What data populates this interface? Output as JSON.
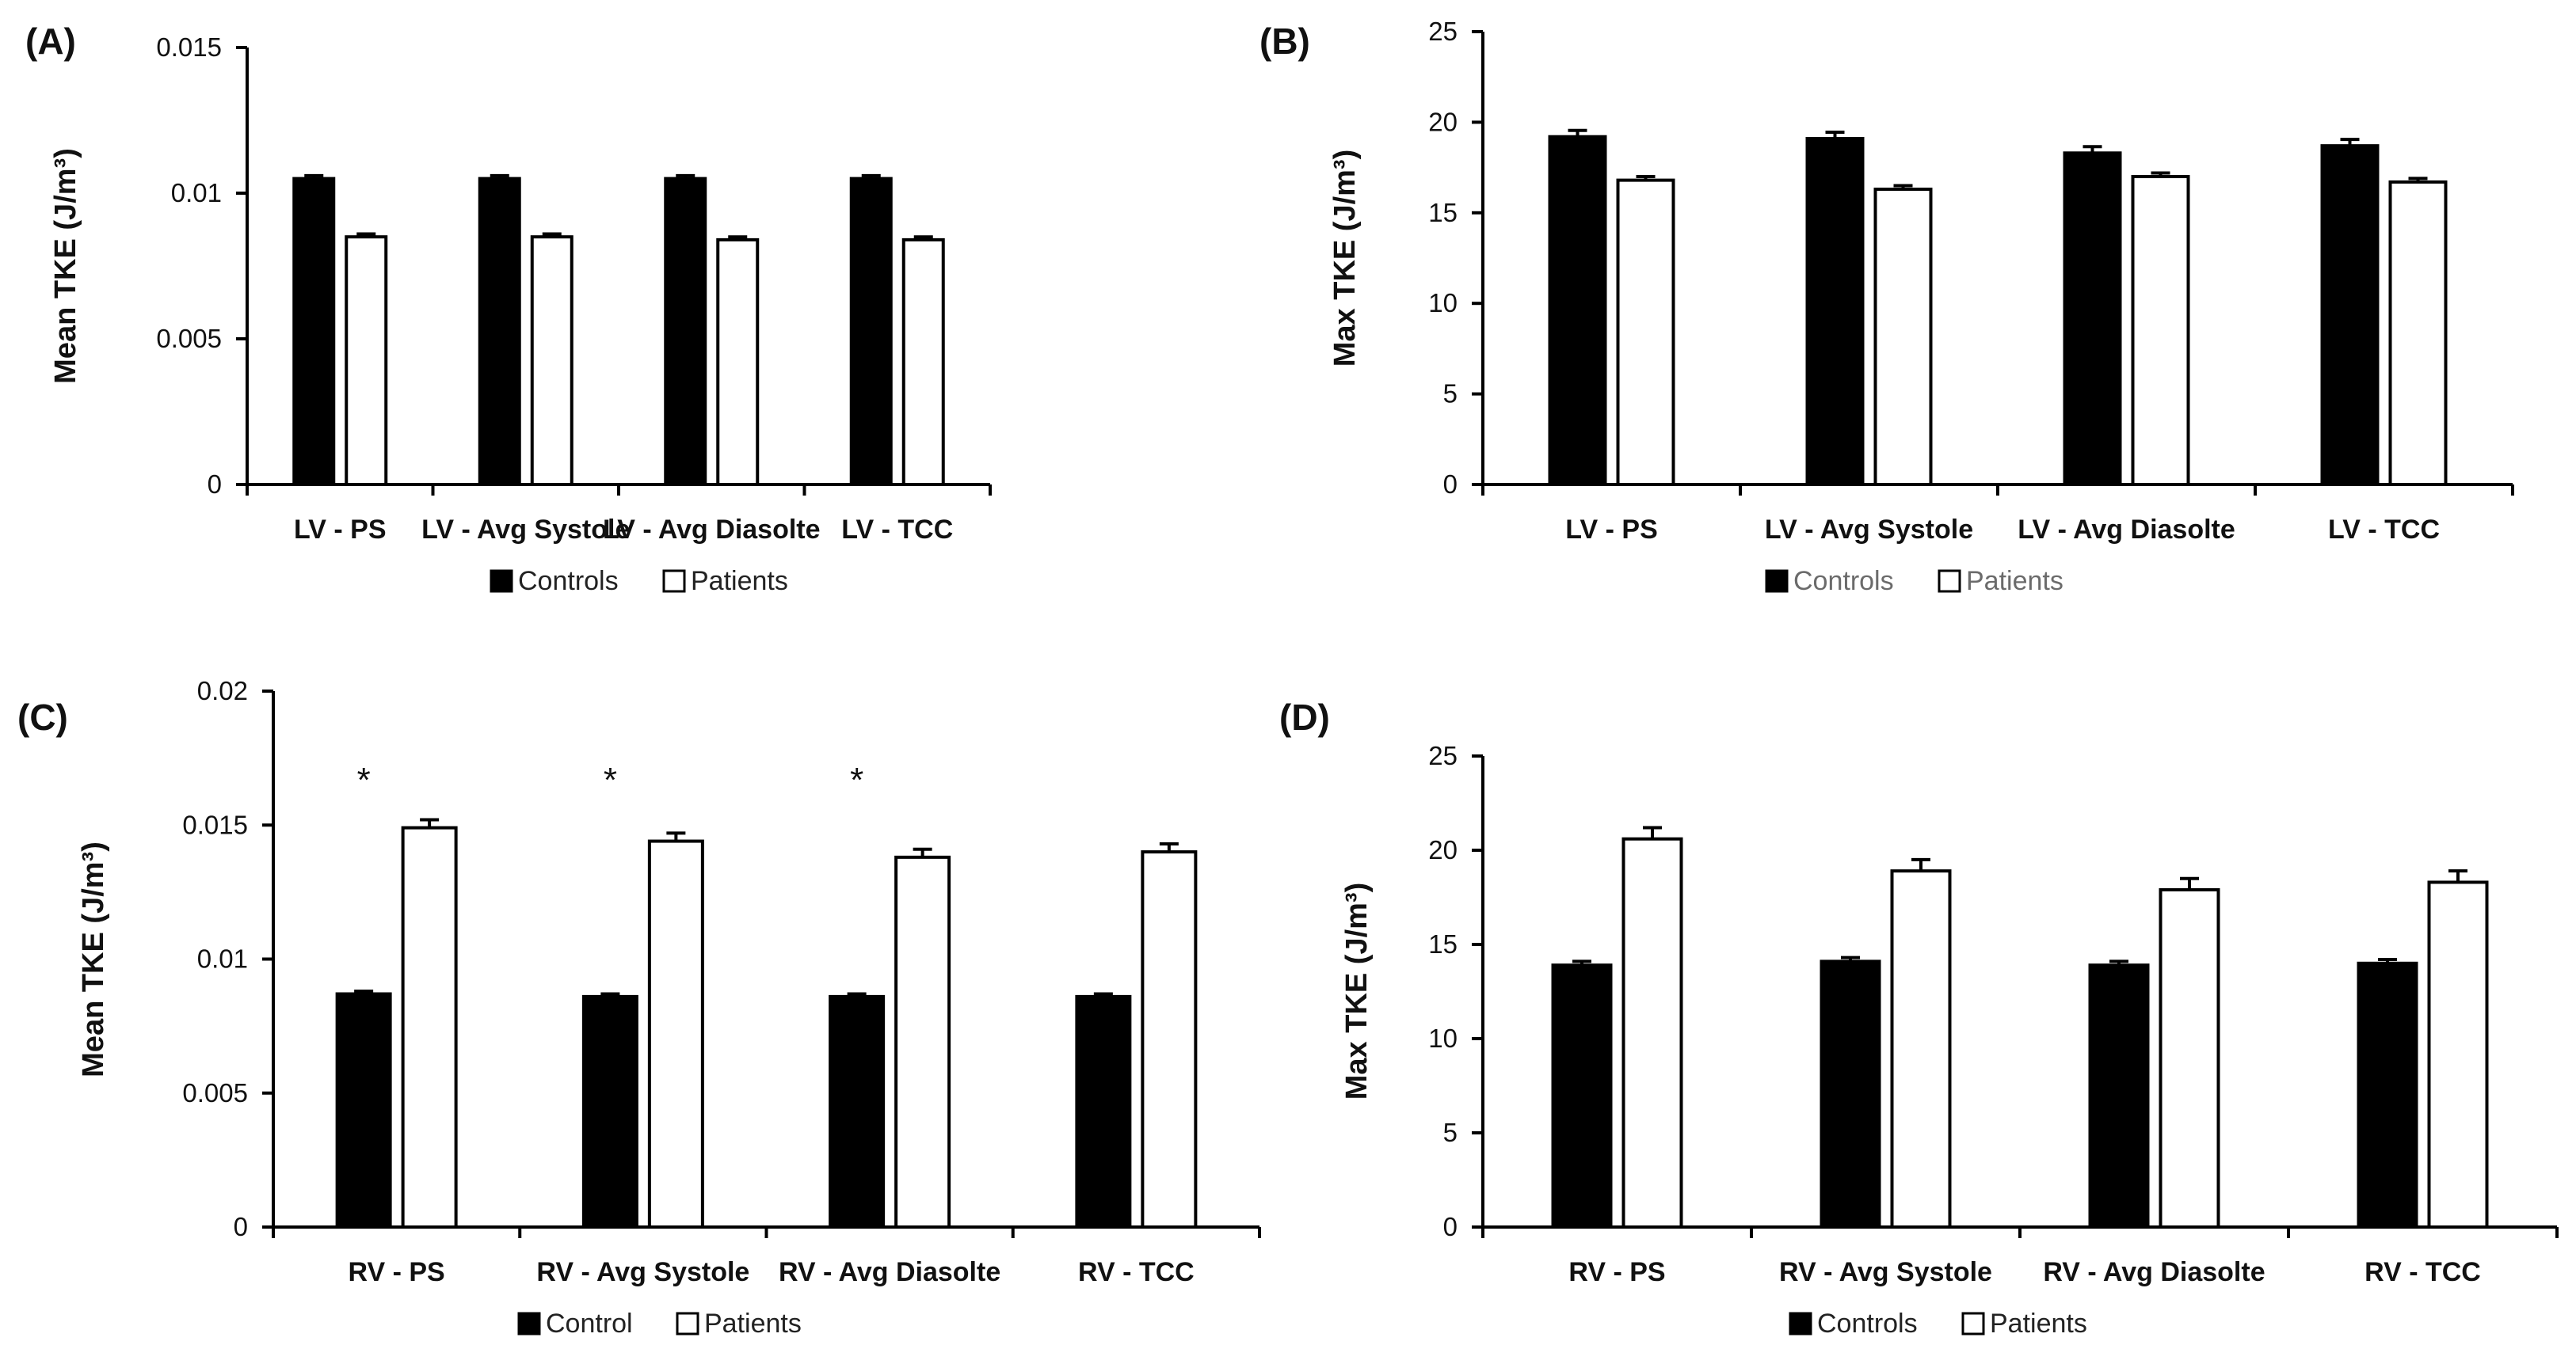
{
  "colors": {
    "controls": "#000000",
    "patients": "#ffffff",
    "axis": "#000000"
  },
  "chart_data": [
    {
      "panel": "(A)",
      "type": "bar",
      "ylabel": "Mean TKE (J/m³)",
      "categories": [
        "LV - PS",
        "LV - Avg Systole",
        "LV - Avg  Diasolte",
        "LV - TCC"
      ],
      "series": [
        {
          "name": "Controls",
          "values": [
            0.0105,
            0.0105,
            0.0105,
            0.0105
          ],
          "errors": [
            0.0001,
            0.0001,
            0.0001,
            0.0001
          ]
        },
        {
          "name": "Patients",
          "values": [
            0.0085,
            0.0085,
            0.0084,
            0.0084
          ],
          "errors": [
            0.0001,
            0.0001,
            0.0001,
            0.0001
          ]
        }
      ],
      "ylim": [
        0,
        0.015
      ],
      "yticks": [
        0,
        0.005,
        0.01,
        0.015
      ],
      "ytick_labels": [
        "0",
        "0.005",
        "0.01",
        "0.015"
      ],
      "significance": [],
      "legend": {
        "position": "bottom",
        "labels": [
          "Controls",
          "Patients"
        ],
        "grey": false
      }
    },
    {
      "panel": "(B)",
      "type": "bar",
      "ylabel": "Max TKE (J/m³)",
      "categories": [
        "LV - PS",
        "LV - Avg Systole",
        "LV - Avg  Diasolte",
        "LV - TCC"
      ],
      "series": [
        {
          "name": "Controls",
          "values": [
            19.2,
            19.1,
            18.3,
            18.7
          ],
          "errors": [
            0.35,
            0.35,
            0.35,
            0.35
          ]
        },
        {
          "name": "Patients",
          "values": [
            16.8,
            16.3,
            17.0,
            16.7
          ],
          "errors": [
            0.2,
            0.2,
            0.2,
            0.2
          ]
        }
      ],
      "ylim": [
        0,
        25
      ],
      "yticks": [
        0,
        5,
        10,
        15,
        20,
        25
      ],
      "ytick_labels": [
        "0",
        "5",
        "10",
        "15",
        "20",
        "25"
      ],
      "significance": [],
      "legend": {
        "position": "bottom",
        "labels": [
          "Controls",
          "Patients"
        ],
        "grey": true
      }
    },
    {
      "panel": "(C)",
      "type": "bar",
      "ylabel": "Mean TKE (J/m³)",
      "categories": [
        "RV - PS",
        "RV - Avg Systole",
        "RV - Avg Diasolte",
        "RV - TCC"
      ],
      "series": [
        {
          "name": "Control",
          "values": [
            0.0087,
            0.0086,
            0.0086,
            0.0086
          ],
          "errors": [
            0.0001,
            0.0001,
            0.0001,
            0.0001
          ]
        },
        {
          "name": "Patients",
          "values": [
            0.0149,
            0.0144,
            0.0138,
            0.014
          ],
          "errors": [
            0.0003,
            0.0003,
            0.0003,
            0.0003
          ]
        }
      ],
      "ylim": [
        0,
        0.02
      ],
      "yticks": [
        0,
        0.005,
        0.01,
        0.015,
        0.02
      ],
      "ytick_labels": [
        "0",
        "0.005",
        "0.01",
        "0.015",
        "0.02"
      ],
      "significance": [
        {
          "category_index": 0,
          "symbol": "*"
        },
        {
          "category_index": 1,
          "symbol": "*"
        },
        {
          "category_index": 2,
          "symbol": "*"
        }
      ],
      "legend": {
        "position": "bottom",
        "labels": [
          "Control",
          "Patients"
        ],
        "grey": false
      }
    },
    {
      "panel": "(D)",
      "type": "bar",
      "ylabel": "Max TKE (J/m³)",
      "categories": [
        "RV - PS",
        "RV - Avg Systole",
        "RV - Avg Diasolte",
        "RV - TCC"
      ],
      "series": [
        {
          "name": "Controls",
          "values": [
            13.9,
            14.1,
            13.9,
            14.0
          ],
          "errors": [
            0.2,
            0.2,
            0.2,
            0.2
          ]
        },
        {
          "name": "Patients",
          "values": [
            20.6,
            18.9,
            17.9,
            18.3
          ],
          "errors": [
            0.6,
            0.6,
            0.6,
            0.6
          ]
        }
      ],
      "ylim": [
        0,
        25
      ],
      "yticks": [
        0,
        5,
        10,
        15,
        20,
        25
      ],
      "ytick_labels": [
        "0",
        "5",
        "10",
        "15",
        "20",
        "25"
      ],
      "significance": [],
      "legend": {
        "position": "bottom",
        "labels": [
          "Controls",
          "Patients"
        ],
        "grey": false
      }
    }
  ]
}
